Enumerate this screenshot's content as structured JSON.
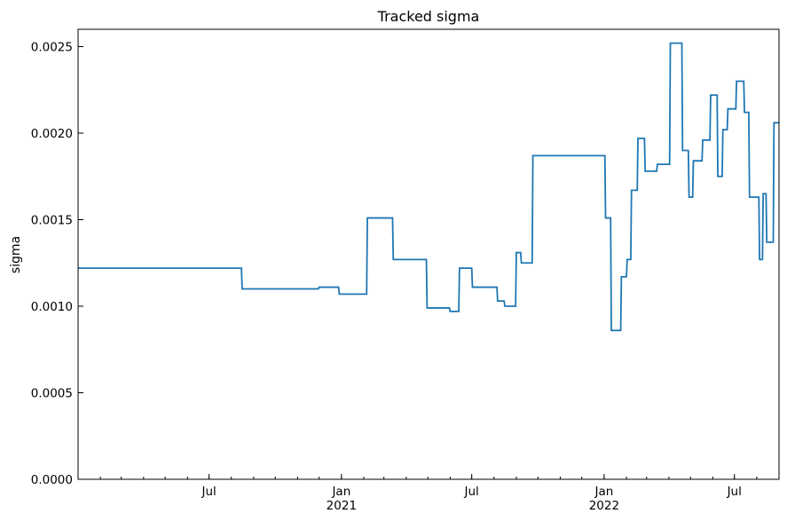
{
  "chart_data": {
    "type": "line",
    "title": "Tracked sigma",
    "ylabel": "sigma",
    "xlabel": "",
    "xlim": [
      "2020-01-01",
      "2022-09-01"
    ],
    "ylim": [
      0,
      0.0026
    ],
    "y_ticks": [
      "0.0000",
      "0.0005",
      "0.0010",
      "0.0015",
      "0.0020",
      "0.0025"
    ],
    "x_ticks": [
      {
        "date": "2020-07-01",
        "label": "Jul",
        "year": ""
      },
      {
        "date": "2021-01-01",
        "label": "Jan",
        "year": "2021"
      },
      {
        "date": "2021-07-01",
        "label": "Jul",
        "year": ""
      },
      {
        "date": "2022-01-01",
        "label": "Jan",
        "year": "2022"
      },
      {
        "date": "2022-07-01",
        "label": "Jul",
        "year": ""
      }
    ],
    "legend": "none",
    "grid": false,
    "line_style": "step",
    "series": [
      {
        "color": "#1f77b4",
        "x": [
          "2020-01-01",
          "2020-08-15",
          "2020-08-16",
          "2020-11-30",
          "2020-12-01",
          "2020-12-28",
          "2020-12-29",
          "2021-02-05",
          "2021-02-06",
          "2021-03-13",
          "2021-03-14",
          "2021-04-29",
          "2021-04-30",
          "2021-05-31",
          "2021-06-01",
          "2021-06-13",
          "2021-06-14",
          "2021-07-01",
          "2021-07-02",
          "2021-08-05",
          "2021-08-06",
          "2021-08-15",
          "2021-08-16",
          "2021-08-31",
          "2021-09-01",
          "2021-09-07",
          "2021-09-08",
          "2021-09-23",
          "2021-09-24",
          "2022-01-02",
          "2022-01-03",
          "2022-01-10",
          "2022-01-11",
          "2022-01-24",
          "2022-01-25",
          "2022-02-01",
          "2022-02-02",
          "2022-02-07",
          "2022-02-08",
          "2022-02-16",
          "2022-02-17",
          "2022-02-26",
          "2022-02-27",
          "2022-03-15",
          "2022-03-16",
          "2022-04-02",
          "2022-04-03",
          "2022-04-19",
          "2022-04-20",
          "2022-04-28",
          "2022-04-29",
          "2022-05-04",
          "2022-05-05",
          "2022-05-17",
          "2022-05-18",
          "2022-05-28",
          "2022-05-29",
          "2022-06-07",
          "2022-06-08",
          "2022-06-14",
          "2022-06-15",
          "2022-06-21",
          "2022-06-22",
          "2022-07-03",
          "2022-07-04",
          "2022-07-14",
          "2022-07-15",
          "2022-07-21",
          "2022-07-22",
          "2022-08-04",
          "2022-08-05",
          "2022-08-09",
          "2022-08-10",
          "2022-08-14",
          "2022-08-15",
          "2022-08-24",
          "2022-08-25",
          "2022-09-01"
        ],
        "y": [
          0.00122,
          0.00122,
          0.0011,
          0.0011,
          0.00111,
          0.00111,
          0.00107,
          0.00107,
          0.00151,
          0.00151,
          0.00127,
          0.00127,
          0.00099,
          0.00099,
          0.00097,
          0.00097,
          0.00122,
          0.00122,
          0.00111,
          0.00111,
          0.00103,
          0.00103,
          0.001,
          0.001,
          0.00131,
          0.00131,
          0.00125,
          0.00125,
          0.00187,
          0.00187,
          0.00151,
          0.00151,
          0.00086,
          0.00086,
          0.00117,
          0.00117,
          0.00127,
          0.00127,
          0.00167,
          0.00167,
          0.00197,
          0.00197,
          0.00178,
          0.00178,
          0.00182,
          0.00182,
          0.00252,
          0.00252,
          0.0019,
          0.0019,
          0.00163,
          0.00163,
          0.00184,
          0.00184,
          0.00196,
          0.00196,
          0.00222,
          0.00222,
          0.00175,
          0.00175,
          0.00202,
          0.00202,
          0.00214,
          0.00214,
          0.0023,
          0.0023,
          0.00212,
          0.00212,
          0.00163,
          0.00163,
          0.00127,
          0.00127,
          0.00165,
          0.00165,
          0.00137,
          0.00137,
          0.00206,
          0.00206
        ]
      }
    ]
  }
}
